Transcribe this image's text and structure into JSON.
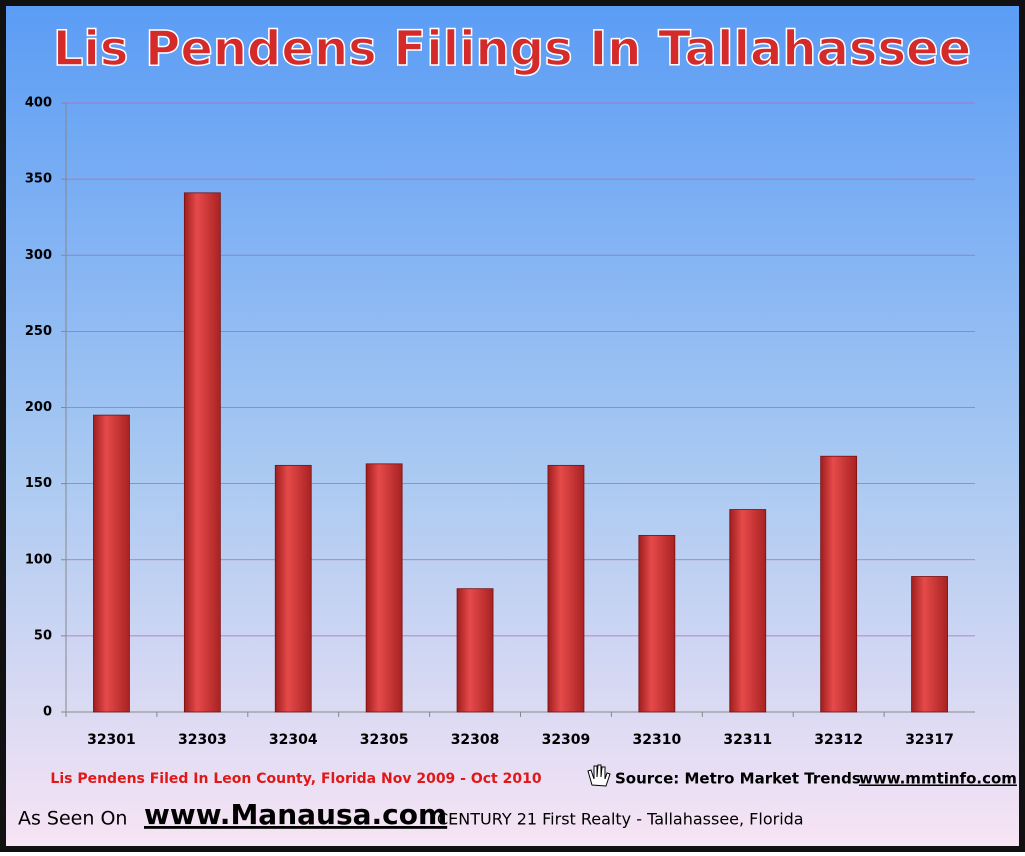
{
  "chart_data": {
    "type": "bar",
    "title": "Lis Pendens Filings In Tallahassee",
    "categories": [
      "32301",
      "32303",
      "32304",
      "32305",
      "32308",
      "32309",
      "32310",
      "32311",
      "32312",
      "32317"
    ],
    "values": [
      195,
      341,
      162,
      163,
      81,
      162,
      116,
      133,
      168,
      89
    ],
    "color": "#d93a3a",
    "ylim": [
      0,
      400
    ],
    "yticks": [
      0,
      50,
      100,
      150,
      200,
      250,
      300,
      350,
      400
    ],
    "grid": true,
    "subtitle": "Lis Pendens Filed In Leon County, Florida  Nov 2009 - Oct 2010",
    "source": "Source: Metro Market Trends",
    "source_url": "www.mmtinfo.com",
    "footer": {
      "prefix": "As Seen On",
      "url": "www.Manausa.com",
      "text": "CENTURY 21 First Realty - Tallahassee,  Florida"
    }
  }
}
